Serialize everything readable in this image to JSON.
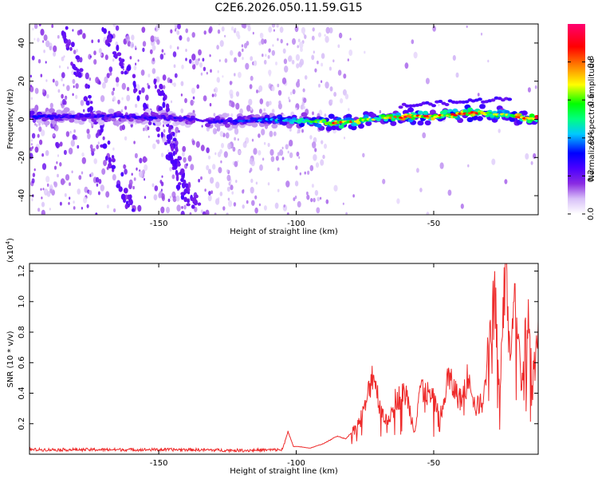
{
  "title": "C2E6.2026.050.11.59.G15",
  "chart_data": [
    {
      "type": "heatmap",
      "name": "spectrogram",
      "xlabel": "Height of straight line (km)",
      "ylabel": "Frequency (Hz)",
      "xlim": [
        -197,
        -12
      ],
      "ylim": [
        -50,
        50
      ],
      "xticks": [
        -150,
        -100,
        -50
      ],
      "xtick_labels": [
        "-150",
        "-100",
        "-50"
      ],
      "yticks": [
        -40,
        -20,
        0,
        20,
        40
      ],
      "ytick_labels": [
        "-40",
        "-20",
        "0",
        "20",
        "40"
      ],
      "colorbar": {
        "label": "Normalized spectral amplitude",
        "range": [
          0,
          1
        ],
        "ticks": [
          0.0,
          0.2,
          0.4,
          0.6,
          0.8
        ],
        "tick_labels": [
          "0.0",
          "0.2",
          "0.4",
          "0.6",
          "0.8"
        ],
        "colors": [
          "#ffffff",
          "#d8c0f8",
          "#8a2be2",
          "#4b00ff",
          "#0000ff",
          "#00c8ff",
          "#00ff80",
          "#00ff00",
          "#ffff00",
          "#ff8000",
          "#ff0000",
          "#ff0070"
        ]
      },
      "ridge": [
        {
          "x": -197,
          "freq": 1.5,
          "amp": 0.35
        },
        {
          "x": -170,
          "freq": 1.5,
          "amp": 0.3
        },
        {
          "x": -140,
          "freq": 0.5,
          "amp": 0.28
        },
        {
          "x": -130,
          "freq": -1.5,
          "amp": 0.3
        },
        {
          "x": -110,
          "freq": 0.0,
          "amp": 0.4
        },
        {
          "x": -95,
          "freq": -1.0,
          "amp": 0.55
        },
        {
          "x": -85,
          "freq": -2.0,
          "amp": 0.8
        },
        {
          "x": -70,
          "freq": 0.5,
          "amp": 0.6
        },
        {
          "x": -60,
          "freq": 1.5,
          "amp": 0.85
        },
        {
          "x": -50,
          "freq": 1.5,
          "amp": 0.75
        },
        {
          "x": -35,
          "freq": 3.5,
          "amp": 0.8
        },
        {
          "x": -25,
          "freq": 2.5,
          "amp": 0.6
        },
        {
          "x": -15,
          "freq": 0.5,
          "amp": 0.9
        }
      ]
    },
    {
      "type": "line",
      "name": "snr",
      "xlabel": "Height of straight line (km)",
      "ylabel": "SNR (10 * v/v)",
      "scale_label": "(x10",
      "scale_exponent": "4",
      "scale_close": ")",
      "xlim": [
        -197,
        -12
      ],
      "ylim": [
        0,
        1.25
      ],
      "xticks": [
        -150,
        -100,
        -50
      ],
      "xtick_labels": [
        "-150",
        "-100",
        "-50"
      ],
      "yticks": [
        0.2,
        0.4,
        0.6,
        0.8,
        1.0,
        1.2
      ],
      "ytick_labels": [
        "0.2",
        "0.4",
        "0.6",
        "0.8",
        "1.0",
        "1.2"
      ],
      "color": "#ee2a2a",
      "x": [
        -197,
        -180,
        -160,
        -140,
        -120,
        -105,
        -103,
        -101,
        -99,
        -95,
        -90,
        -85,
        -82,
        -78,
        -75,
        -72,
        -70,
        -67,
        -65,
        -60,
        -57,
        -55,
        -50,
        -47,
        -45,
        -40,
        -37,
        -35,
        -32,
        -30,
        -28,
        -26,
        -24,
        -22,
        -20,
        -18,
        -16,
        -14,
        -12
      ],
      "y": [
        0.03,
        0.03,
        0.03,
        0.03,
        0.025,
        0.03,
        0.15,
        0.05,
        0.05,
        0.04,
        0.07,
        0.12,
        0.1,
        0.18,
        0.3,
        0.55,
        0.35,
        0.2,
        0.35,
        0.4,
        0.15,
        0.45,
        0.35,
        0.25,
        0.5,
        0.35,
        0.55,
        0.3,
        0.35,
        0.7,
        1.15,
        0.4,
        1.2,
        0.6,
        1.05,
        0.4,
        0.95,
        0.5,
        0.72
      ]
    }
  ]
}
